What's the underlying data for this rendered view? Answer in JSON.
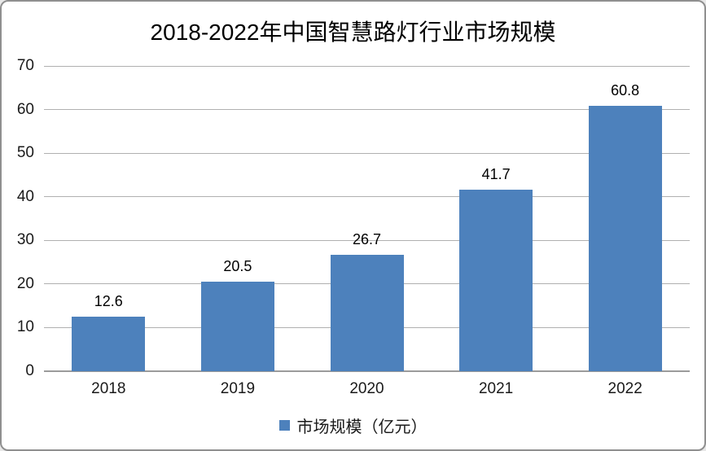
{
  "chart_data": {
    "type": "bar",
    "title": "2018-2022年中国智慧路灯行业市场规模",
    "categories": [
      "2018",
      "2019",
      "2020",
      "2021",
      "2022"
    ],
    "series": [
      {
        "name": "市场规模（亿元）",
        "values": [
          12.6,
          20.5,
          26.7,
          41.7,
          60.8
        ]
      }
    ],
    "values": [
      12.6,
      20.5,
      26.7,
      41.7,
      60.8
    ],
    "value_labels": [
      "12.6",
      "20.5",
      "26.7",
      "41.7",
      "60.8"
    ],
    "xlabel": "",
    "ylabel": "",
    "ylim": [
      0,
      70
    ],
    "yticks": [
      0,
      10,
      20,
      30,
      40,
      50,
      60,
      70
    ],
    "grid": true,
    "legend": {
      "label": "市场规模（亿元）",
      "position": "bottom"
    },
    "colors": {
      "bar": "#4D81BC",
      "gridline": "#b0b0b0",
      "axis_line": "#9b9b9b",
      "frame_border": "#8f8f8f",
      "background": "#ffffff",
      "text": "#1a1a1a"
    }
  }
}
